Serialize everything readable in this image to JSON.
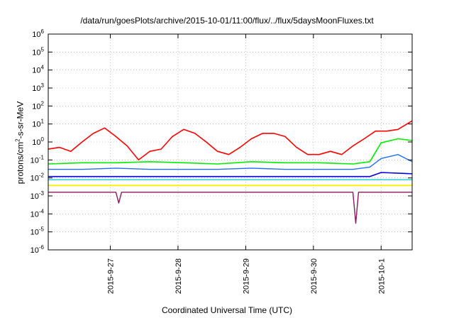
{
  "chart_data": {
    "type": "line",
    "title": "/data/run/goesPlots/archive/2015-10-01/11:00/flux/../flux/5daysMoonFluxes.txt",
    "xlabel": "Coordinated Universal Time (UTC)",
    "ylabel": {
      "prefix": "protons/cm",
      "sup": "2",
      "suffix": "-s-sr-MeV"
    },
    "x_axis": {
      "type": "date",
      "range": [
        "2015-09-26T02:00",
        "2015-10-01T11:00"
      ],
      "tick_labels": [
        "2015-9-27",
        "2015-9-28",
        "2015-9-29",
        "2015-9-30",
        "2015-10-1"
      ],
      "tick_dates": [
        "2015-09-27",
        "2015-09-28",
        "2015-09-29",
        "2015-09-30",
        "2015-10-01"
      ]
    },
    "y_axis": {
      "scale": "log",
      "range": [
        1e-06,
        1000000.0
      ],
      "tick_exponents": [
        -6,
        -5,
        -4,
        -3,
        -2,
        -1,
        0,
        1,
        2,
        3,
        4,
        5,
        6
      ]
    },
    "grid": true,
    "legend": "none",
    "series": [
      {
        "color": "#ff0000",
        "width": 1.6,
        "x": [
          "2015-09-26T02:00",
          "2015-09-26T06:00",
          "2015-09-26T10:00",
          "2015-09-26T14:00",
          "2015-09-26T18:00",
          "2015-09-26T22:00",
          "2015-09-27T02:00",
          "2015-09-27T06:00",
          "2015-09-27T10:00",
          "2015-09-27T14:00",
          "2015-09-27T18:00",
          "2015-09-27T22:00",
          "2015-09-28T02:00",
          "2015-09-28T06:00",
          "2015-09-28T10:00",
          "2015-09-28T14:00",
          "2015-09-28T18:00",
          "2015-09-28T22:00",
          "2015-09-29T02:00",
          "2015-09-29T06:00",
          "2015-09-29T10:00",
          "2015-09-29T14:00",
          "2015-09-29T18:00",
          "2015-09-29T22:00",
          "2015-09-30T02:00",
          "2015-09-30T06:00",
          "2015-09-30T10:00",
          "2015-09-30T14:00",
          "2015-09-30T18:00",
          "2015-09-30T22:00",
          "2015-10-01T02:00",
          "2015-10-01T06:00",
          "2015-10-01T11:00"
        ],
        "y": [
          0.4,
          0.5,
          0.3,
          1.0,
          3,
          6,
          2,
          0.6,
          0.1,
          0.3,
          0.4,
          2,
          5,
          3,
          1,
          0.3,
          0.2,
          0.5,
          1.5,
          3,
          3,
          2,
          0.5,
          0.2,
          0.2,
          0.3,
          0.2,
          0.6,
          1.5,
          4,
          4,
          5,
          15
        ]
      },
      {
        "color": "#00ee00",
        "width": 1.6,
        "x": [
          "2015-09-26T02:00",
          "2015-09-26T14:00",
          "2015-09-27T02:00",
          "2015-09-27T14:00",
          "2015-09-28T02:00",
          "2015-09-28T14:00",
          "2015-09-29T02:00",
          "2015-09-29T14:00",
          "2015-09-30T02:00",
          "2015-09-30T14:00",
          "2015-09-30T20:00",
          "2015-10-01T00:00",
          "2015-10-01T06:00",
          "2015-10-01T11:00"
        ],
        "y": [
          0.06,
          0.07,
          0.07,
          0.08,
          0.07,
          0.06,
          0.08,
          0.07,
          0.07,
          0.06,
          0.08,
          0.9,
          1.5,
          1.2
        ]
      },
      {
        "color": "#1e6fff",
        "width": 1.4,
        "x": [
          "2015-09-26T02:00",
          "2015-09-26T14:00",
          "2015-09-27T02:00",
          "2015-09-27T14:00",
          "2015-09-28T02:00",
          "2015-09-28T14:00",
          "2015-09-29T02:00",
          "2015-09-29T14:00",
          "2015-09-30T02:00",
          "2015-09-30T14:00",
          "2015-09-30T20:00",
          "2015-10-01T00:00",
          "2015-10-01T06:00",
          "2015-10-01T11:00"
        ],
        "y": [
          0.03,
          0.03,
          0.035,
          0.03,
          0.03,
          0.03,
          0.035,
          0.03,
          0.03,
          0.03,
          0.04,
          0.12,
          0.2,
          0.08
        ]
      },
      {
        "color": "#00c8c8",
        "width": 1.3,
        "x": [
          "2015-09-26T02:00",
          "2015-09-27T02:00",
          "2015-09-28T02:00",
          "2015-09-29T02:00",
          "2015-09-30T02:00",
          "2015-09-30T20:00",
          "2015-10-01T11:00"
        ],
        "y": [
          0.008,
          0.008,
          0.008,
          0.008,
          0.008,
          0.008,
          0.008
        ]
      },
      {
        "color": "#0000dd",
        "width": 1.6,
        "x": [
          "2015-09-26T02:00",
          "2015-09-27T02:00",
          "2015-09-28T02:00",
          "2015-09-29T02:00",
          "2015-09-30T02:00",
          "2015-09-30T20:00",
          "2015-10-01T00:00",
          "2015-10-01T11:00"
        ],
        "y": [
          0.012,
          0.012,
          0.012,
          0.012,
          0.012,
          0.012,
          0.02,
          0.017
        ]
      },
      {
        "color": "#ffee00",
        "width": 1.8,
        "x": [
          "2015-09-26T02:00",
          "2015-10-01T11:00"
        ],
        "y": [
          0.0038,
          0.0038
        ]
      },
      {
        "color": "#8b1a5a",
        "width": 1.4,
        "x": [
          "2015-09-26T02:00",
          "2015-09-27T02:00",
          "2015-09-27T03:00",
          "2015-09-27T04:00",
          "2015-09-28T02:00",
          "2015-09-29T02:00",
          "2015-09-30T02:00",
          "2015-09-30T14:00",
          "2015-09-30T15:00",
          "2015-09-30T16:00",
          "2015-10-01T11:00"
        ],
        "y": [
          0.0016,
          0.0016,
          0.0004,
          0.0016,
          0.0016,
          0.0016,
          0.0016,
          0.0016,
          3e-05,
          0.0016,
          0.0016
        ]
      }
    ]
  }
}
